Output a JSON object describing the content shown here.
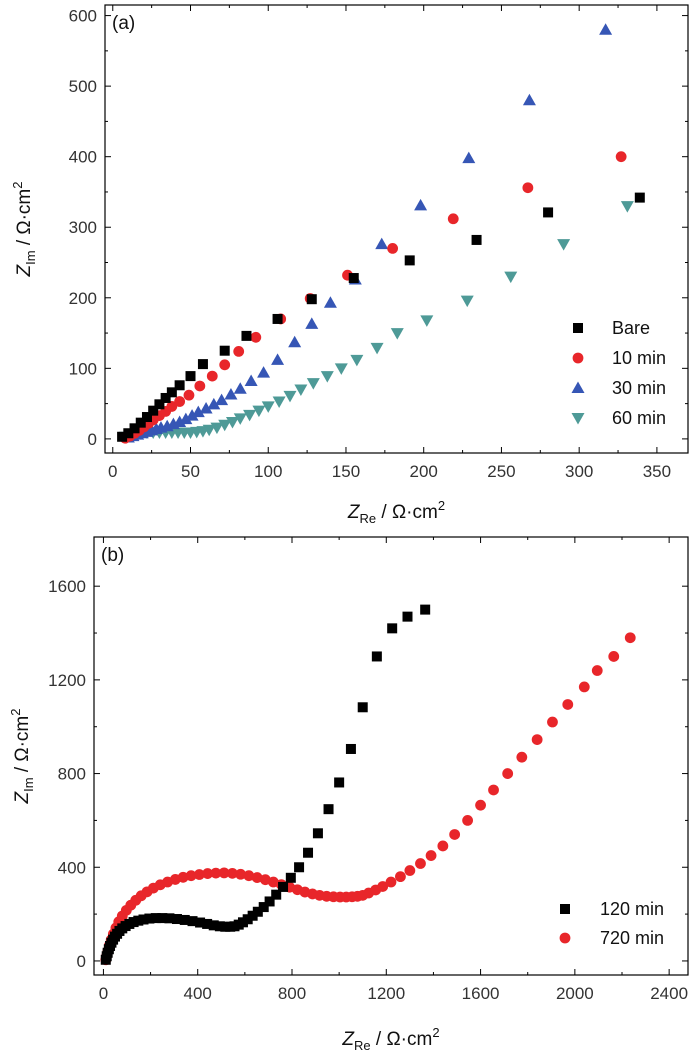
{
  "chart_data": [
    {
      "type": "scatter",
      "panel_label": "(a)",
      "xlabel": {
        "symbol": "Z",
        "sub": "Re",
        "unit": " / Ω·cm",
        "sup": "2"
      },
      "ylabel": {
        "symbol": "Z",
        "sub": "Im",
        "unit": " / Ω·cm",
        "sup": "2"
      },
      "xlim": [
        -5,
        370
      ],
      "ylim": [
        -20,
        615
      ],
      "xticks": [
        0,
        50,
        100,
        150,
        200,
        250,
        300,
        350
      ],
      "yticks": [
        0,
        100,
        200,
        300,
        400,
        500,
        600
      ],
      "legend_position": "bottom-right",
      "series": [
        {
          "name": "Bare",
          "marker": "square",
          "color": "#000000",
          "x": [
            6,
            10,
            14,
            18,
            22,
            26,
            30,
            34,
            38,
            43,
            50,
            58,
            72,
            86,
            106,
            128,
            155,
            191,
            234,
            280,
            339
          ],
          "y": [
            3,
            8,
            15,
            23,
            31,
            40,
            49,
            58,
            66,
            76,
            89,
            106,
            125,
            146,
            170,
            198,
            228,
            253,
            282,
            321,
            342
          ]
        },
        {
          "name": "10 min",
          "marker": "circle",
          "color": "#e8262a",
          "x": [
            8,
            11,
            14,
            17,
            20,
            23,
            26,
            30,
            34,
            38,
            43,
            49,
            56,
            64,
            72,
            81,
            92,
            108,
            127,
            151,
            180,
            219,
            267,
            327
          ],
          "y": [
            1,
            4,
            8,
            12,
            17,
            22,
            27,
            33,
            39,
            46,
            53,
            62,
            75,
            89,
            105,
            124,
            144,
            170,
            199,
            232,
            270,
            312,
            356,
            400
          ]
        },
        {
          "name": "30 min",
          "marker": "triangle-up",
          "color": "#3656b5",
          "x": [
            10,
            13,
            16,
            19,
            22,
            25,
            28,
            31,
            35,
            39,
            43,
            47,
            51,
            55,
            60,
            65,
            70,
            76,
            82,
            89,
            97,
            106,
            117,
            128,
            140,
            156,
            173,
            198,
            229,
            268,
            317
          ],
          "y": [
            2,
            4,
            6,
            8,
            10,
            12,
            14,
            16,
            18,
            21,
            24,
            28,
            33,
            38,
            43,
            49,
            55,
            63,
            71,
            82,
            94,
            112,
            137,
            163,
            193,
            226,
            276,
            331,
            398,
            480,
            580
          ]
        },
        {
          "name": "60 min",
          "marker": "triangle-down",
          "color": "#4e9a97",
          "x": [
            8,
            11,
            14,
            18,
            22,
            26,
            30,
            34,
            38,
            42,
            46,
            50,
            54,
            58,
            62,
            67,
            72,
            77,
            82,
            88,
            94,
            100,
            107,
            114,
            121,
            129,
            138,
            147,
            157,
            170,
            183,
            202,
            228,
            256,
            290,
            331
          ],
          "y": [
            3,
            5,
            7,
            8,
            9,
            9,
            9,
            9,
            9,
            9,
            9,
            9,
            10,
            11,
            13,
            16,
            20,
            24,
            29,
            34,
            40,
            46,
            53,
            61,
            70,
            79,
            89,
            100,
            112,
            129,
            150,
            168,
            196,
            230,
            276,
            330
          ]
        }
      ]
    },
    {
      "type": "scatter",
      "panel_label": "(b)",
      "xlabel": {
        "symbol": "Z",
        "sub": "Re",
        "unit": " / Ω·cm",
        "sup": "2"
      },
      "ylabel": {
        "symbol": "Z",
        "sub": "Im",
        "unit": " / Ω·cm",
        "sup": "2"
      },
      "xlim": [
        -40,
        2480
      ],
      "ylim": [
        -60,
        1810
      ],
      "xticks": [
        0,
        400,
        800,
        1200,
        1600,
        2000,
        2400
      ],
      "yticks": [
        0,
        400,
        800,
        1200,
        1600
      ],
      "legend_position": "bottom-right",
      "series": [
        {
          "name": "120 min",
          "marker": "square",
          "color": "#000000",
          "x": [
            10,
            14,
            18,
            23,
            28,
            34,
            41,
            49,
            58,
            68,
            80,
            94,
            110,
            128,
            148,
            170,
            195,
            222,
            250,
            280,
            312,
            345,
            378,
            410,
            440,
            468,
            494,
            517,
            538,
            556,
            574,
            592,
            612,
            633,
            655,
            680,
            705,
            733,
            762,
            795,
            830,
            868,
            910,
            955,
            1000,
            1050,
            1100,
            1160,
            1225,
            1290,
            1365
          ],
          "y": [
            5,
            20,
            35,
            50,
            64,
            78,
            91,
            104,
            116,
            128,
            139,
            149,
            158,
            166,
            172,
            177,
            181,
            183,
            183,
            182,
            179,
            175,
            170,
            164,
            158,
            152,
            148,
            146,
            146,
            148,
            155,
            165,
            178,
            193,
            210,
            230,
            254,
            283,
            316,
            355,
            400,
            462,
            545,
            648,
            762,
            905,
            1083,
            1300,
            1420,
            1470,
            1500
          ]
        },
        {
          "name": "720 min",
          "marker": "circle",
          "color": "#e8262a",
          "x": [
            10,
            14,
            19,
            25,
            33,
            42,
            53,
            65,
            80,
            97,
            116,
            137,
            160,
            185,
            212,
            241,
            272,
            305,
            338,
            372,
            407,
            442,
            477,
            512,
            547,
            582,
            617,
            652,
            687,
            721,
            755,
            790,
            823,
            855,
            887,
            917,
            947,
            976,
            1004,
            1030,
            1055,
            1078,
            1100,
            1125,
            1155,
            1185,
            1220,
            1260,
            1300,
            1345,
            1390,
            1440,
            1490,
            1545,
            1600,
            1655,
            1715,
            1775,
            1840,
            1905,
            1970,
            2040,
            2095,
            2165,
            2235
          ],
          "y": [
            5,
            22,
            42,
            66,
            90,
            115,
            141,
            167,
            192,
            216,
            238,
            259,
            278,
            295,
            311,
            325,
            337,
            348,
            357,
            364,
            369,
            373,
            375,
            376,
            374,
            370,
            364,
            356,
            347,
            337,
            326,
            315,
            304,
            294,
            286,
            280,
            276,
            274,
            273,
            273,
            274,
            276,
            280,
            290,
            303,
            318,
            337,
            360,
            386,
            416,
            450,
            491,
            540,
            600,
            665,
            730,
            800,
            870,
            945,
            1020,
            1095,
            1170,
            1240,
            1300,
            1380
          ]
        }
      ]
    }
  ]
}
